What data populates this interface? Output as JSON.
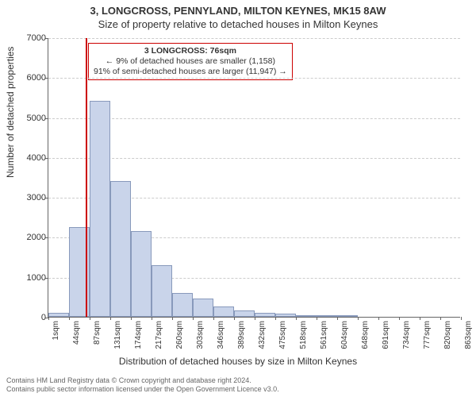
{
  "title": "3, LONGCROSS, PENNYLAND, MILTON KEYNES, MK15 8AW",
  "subtitle": "Size of property relative to detached houses in Milton Keynes",
  "ylabel": "Number of detached properties",
  "xlabel": "Distribution of detached houses by size in Milton Keynes",
  "chart": {
    "type": "histogram",
    "background_color": "#ffffff",
    "grid_color": "#cccccc",
    "axis_color": "#666666",
    "bar_fill": "#c9d4ea",
    "bar_border": "#8899bb",
    "bar_border_width": 1,
    "ref_line_color": "#cc0000",
    "x_ticks": [
      "1sqm",
      "44sqm",
      "87sqm",
      "131sqm",
      "174sqm",
      "217sqm",
      "260sqm",
      "303sqm",
      "346sqm",
      "389sqm",
      "432sqm",
      "475sqm",
      "518sqm",
      "561sqm",
      "604sqm",
      "648sqm",
      "691sqm",
      "734sqm",
      "777sqm",
      "820sqm",
      "863sqm"
    ],
    "y_ticks": [
      0,
      1000,
      2000,
      3000,
      4000,
      5000,
      6000,
      7000
    ],
    "ylim": [
      0,
      7000
    ],
    "values": [
      100,
      2250,
      5400,
      3400,
      2150,
      1300,
      600,
      450,
      250,
      150,
      100,
      70,
      50,
      40,
      30,
      0,
      0,
      0,
      0,
      0
    ],
    "ref_line_x_position": 1.8
  },
  "annotation": {
    "border_color": "#cc0000",
    "line1": "3 LONGCROSS: 76sqm",
    "line2": "← 9% of detached houses are smaller (1,158)",
    "line3": "91% of semi-detached houses are larger (11,947) →"
  },
  "footer": {
    "line1": "Contains HM Land Registry data © Crown copyright and database right 2024.",
    "line2": "Contains public sector information licensed under the Open Government Licence v3.0."
  }
}
